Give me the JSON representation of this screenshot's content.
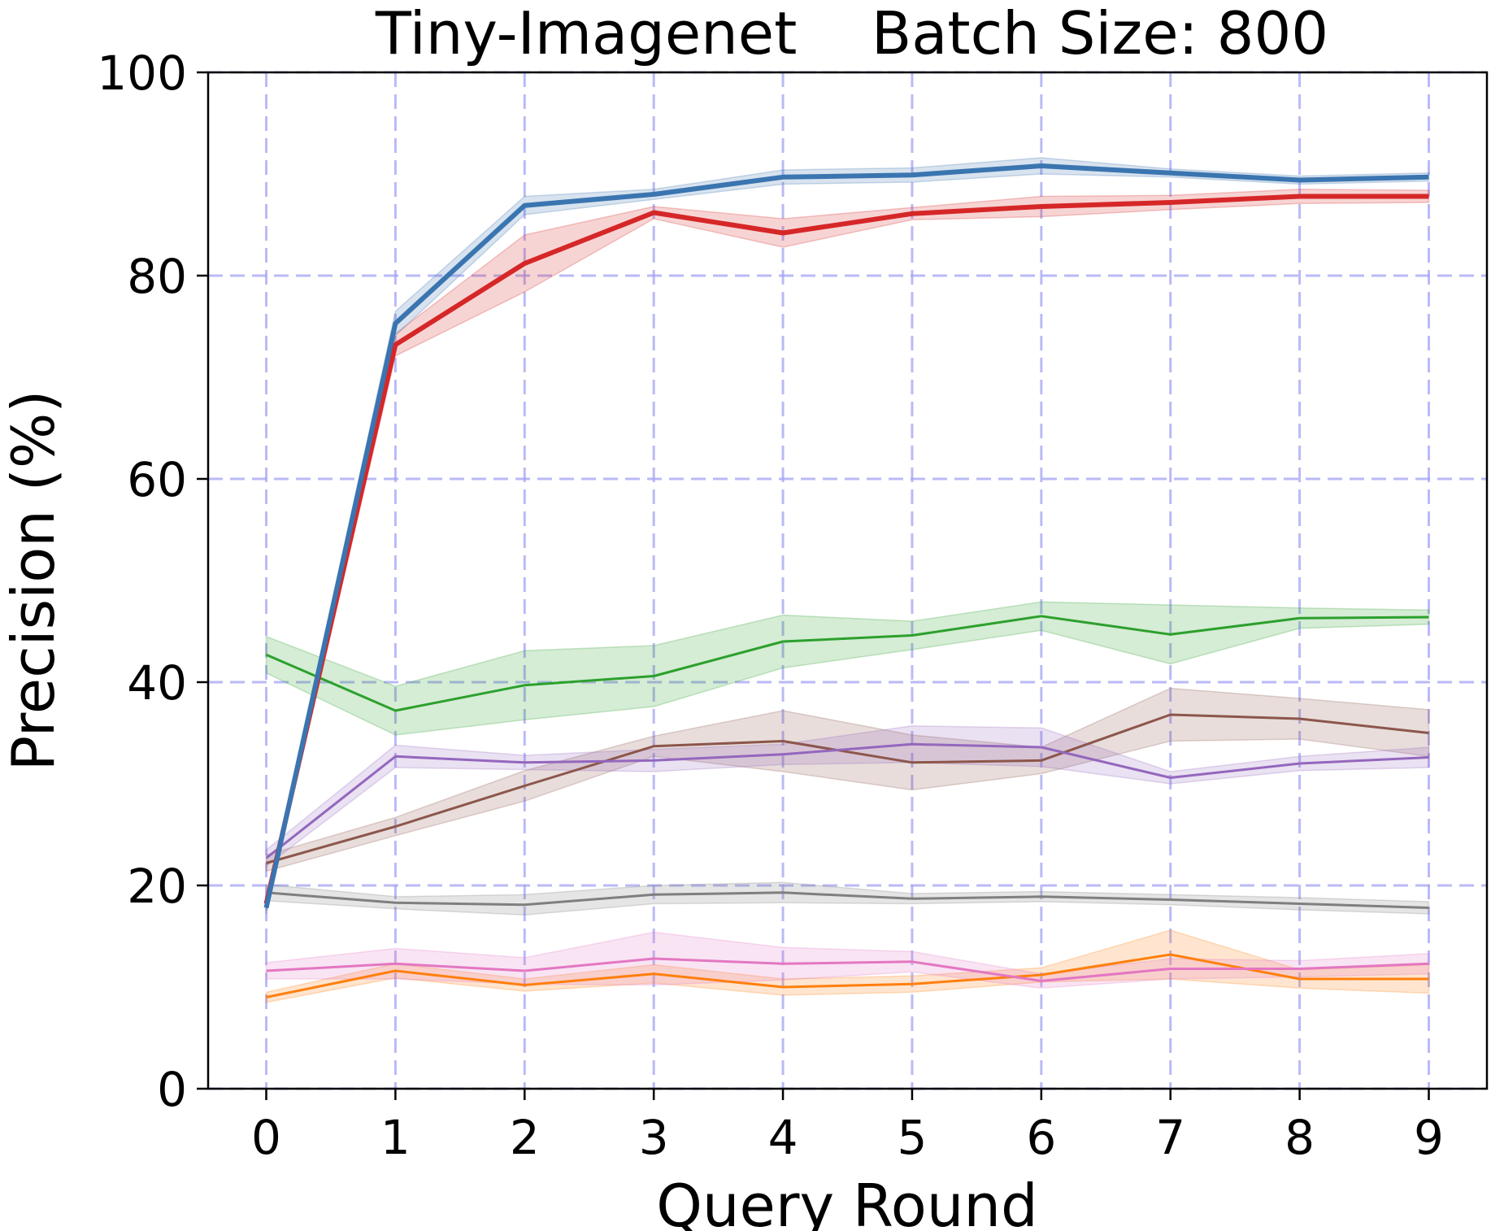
{
  "chart_data": {
    "type": "line",
    "title": "Tiny-Imagenet    Batch Size: 800",
    "xlabel": "Query Round",
    "ylabel": "Precision (%)",
    "x": [
      0,
      1,
      2,
      3,
      4,
      5,
      6,
      7,
      8,
      9
    ],
    "xlim": [
      -0.45,
      9.45
    ],
    "ylim": [
      0,
      100
    ],
    "xticks": [
      "0",
      "1",
      "2",
      "3",
      "4",
      "5",
      "6",
      "7",
      "8",
      "9"
    ],
    "yticks": [
      "0",
      "20",
      "40",
      "60",
      "80",
      "100"
    ],
    "grid": true,
    "series": [
      {
        "color": "#ff7f0e",
        "width": 3,
        "values": [
          9.0,
          11.6,
          10.2,
          11.3,
          10.0,
          10.3,
          11.2,
          13.2,
          10.8,
          10.8
        ],
        "band": [
          0.5,
          0.7,
          0.6,
          0.9,
          0.8,
          0.8,
          0.7,
          2.4,
          0.9,
          1.4
        ]
      },
      {
        "color": "#e377c2",
        "width": 3,
        "values": [
          11.6,
          12.3,
          11.6,
          12.8,
          12.3,
          12.5,
          10.6,
          11.8,
          11.8,
          12.3
        ],
        "band": [
          0.8,
          1.5,
          1.3,
          2.6,
          1.6,
          1.0,
          0.7,
          1.0,
          0.8,
          1.0
        ]
      },
      {
        "color": "#7f7f7f",
        "width": 3,
        "values": [
          19.3,
          18.3,
          18.1,
          19.1,
          19.3,
          18.7,
          18.9,
          18.6,
          18.2,
          17.8
        ],
        "band": [
          0.8,
          0.6,
          1.0,
          0.9,
          1.0,
          0.5,
          0.5,
          0.5,
          0.6,
          0.6
        ]
      },
      {
        "color": "#8c564b",
        "width": 3,
        "values": [
          22.2,
          25.8,
          29.8,
          33.7,
          34.2,
          32.1,
          32.3,
          36.8,
          36.4,
          35.0
        ],
        "band": [
          0.8,
          0.9,
          1.5,
          1.0,
          3.0,
          2.7,
          1.3,
          2.6,
          2.0,
          2.3
        ]
      },
      {
        "color": "#9467bd",
        "width": 3,
        "values": [
          22.7,
          32.7,
          32.1,
          32.3,
          32.9,
          33.9,
          33.6,
          30.6,
          32.0,
          32.6
        ],
        "band": [
          0.8,
          1.1,
          0.7,
          1.1,
          1.0,
          1.8,
          1.9,
          0.6,
          0.7,
          1.0
        ]
      },
      {
        "color": "#2ca02c",
        "width": 3,
        "values": [
          42.7,
          37.2,
          39.7,
          40.6,
          44.0,
          44.6,
          46.5,
          44.7,
          46.3,
          46.4
        ],
        "band": [
          1.8,
          2.4,
          3.4,
          3.0,
          2.6,
          1.4,
          1.4,
          2.9,
          1.0,
          0.7
        ]
      },
      {
        "color": "#d62728",
        "width": 6,
        "values": [
          18.2,
          73.2,
          81.2,
          86.2,
          84.2,
          86.1,
          86.8,
          87.2,
          87.8,
          87.8
        ],
        "band": [
          0.6,
          1.1,
          2.8,
          0.6,
          1.4,
          0.6,
          1.0,
          0.7,
          0.7,
          0.6
        ]
      },
      {
        "color": "#3a75b0",
        "width": 6,
        "values": [
          17.8,
          75.3,
          86.9,
          88.0,
          89.7,
          89.9,
          90.8,
          90.1,
          89.4,
          89.7
        ],
        "band": [
          0.6,
          1.2,
          0.9,
          0.5,
          0.7,
          0.7,
          0.8,
          0.4,
          0.4,
          0.4
        ]
      }
    ]
  }
}
